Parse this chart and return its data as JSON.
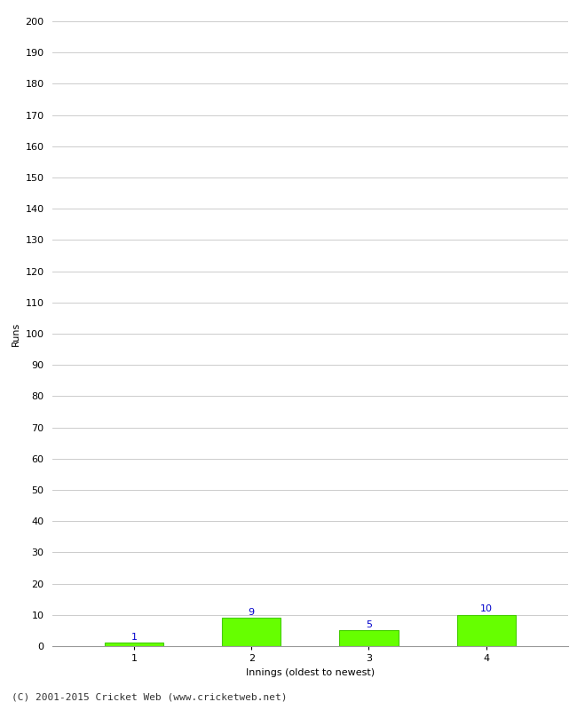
{
  "categories": [
    1,
    2,
    3,
    4
  ],
  "values": [
    1,
    9,
    5,
    10
  ],
  "bar_color": "#66ff00",
  "bar_edgecolor": "#44cc00",
  "value_label_color": "#0000cc",
  "xlabel": "Innings (oldest to newest)",
  "ylabel": "Runs",
  "ylim": [
    0,
    200
  ],
  "ytick_step": 10,
  "footer": "(C) 2001-2015 Cricket Web (www.cricketweb.net)",
  "background_color": "#ffffff",
  "grid_color": "#cccccc",
  "value_fontsize": 8,
  "label_fontsize": 8,
  "tick_fontsize": 8,
  "footer_fontsize": 8
}
